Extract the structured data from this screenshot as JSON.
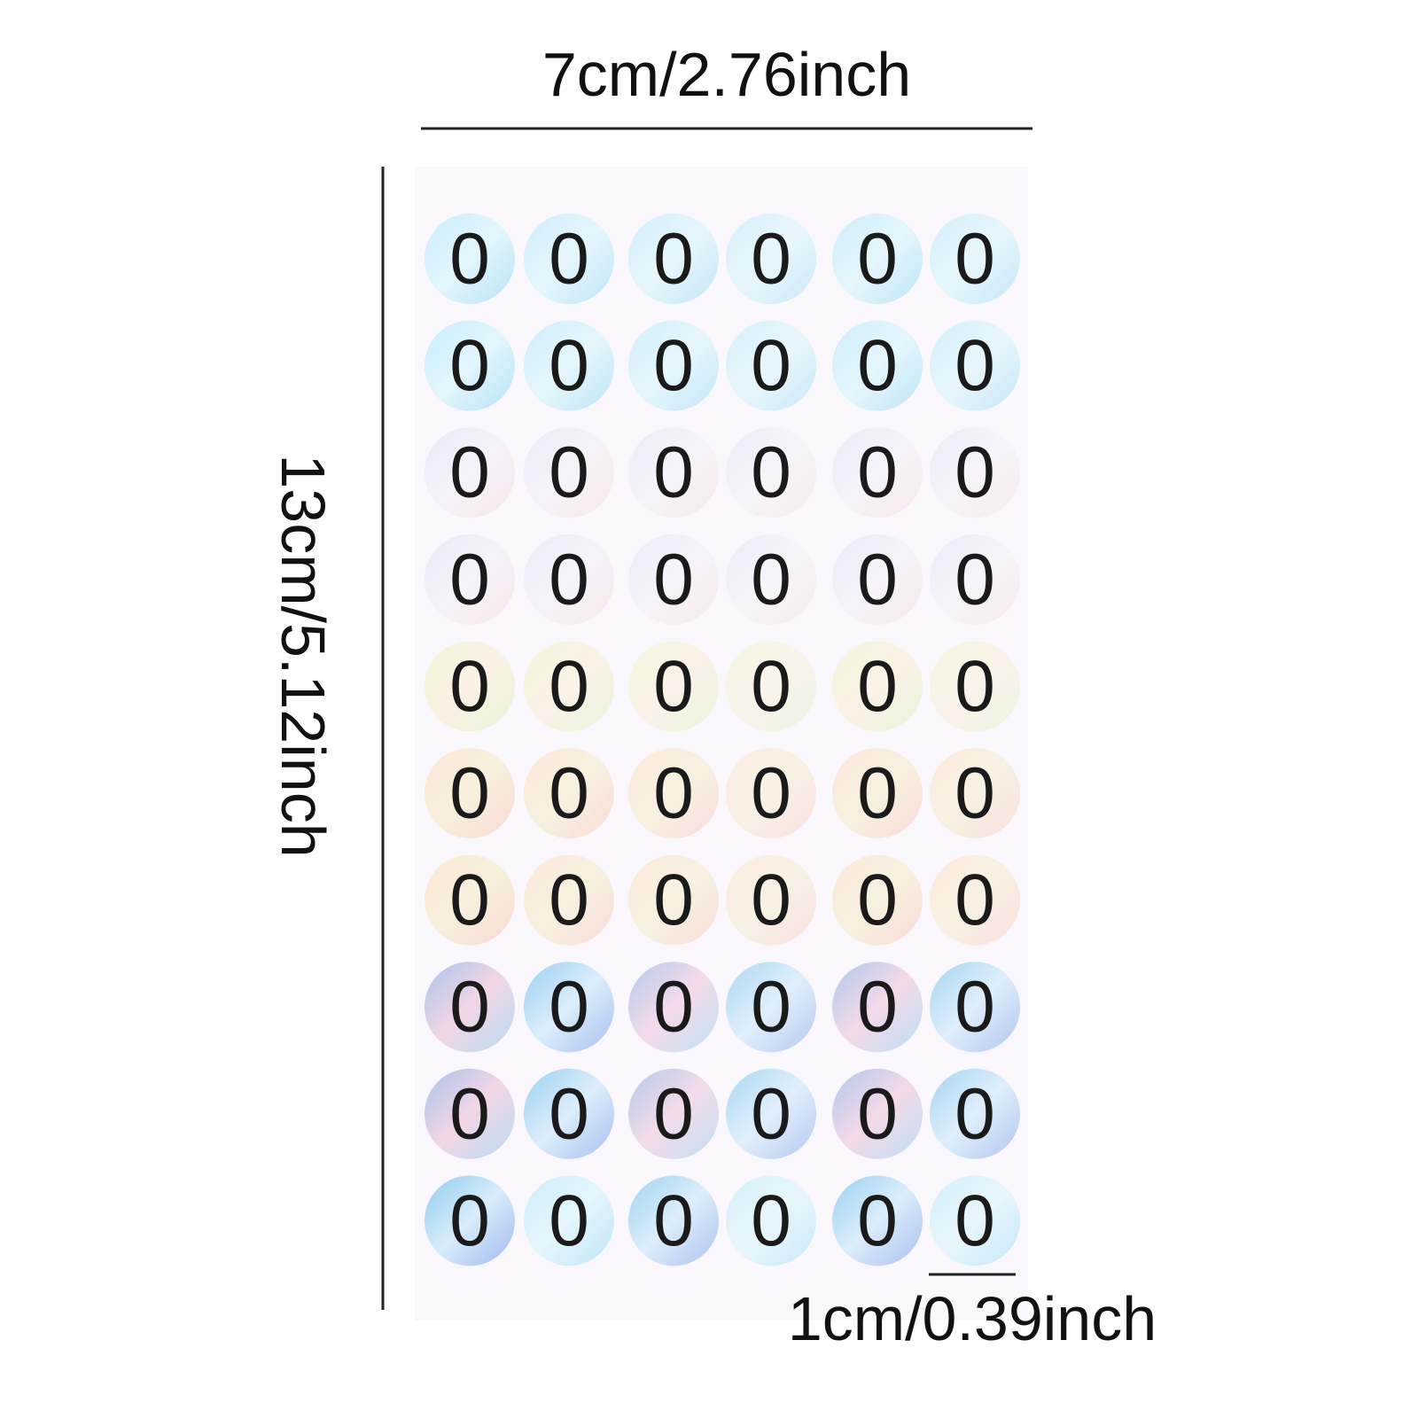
{
  "dimensions": {
    "width": "7cm/2.76inch",
    "height": "13cm/5.12inch",
    "sticker": "1cm/0.39inch"
  },
  "sheet": {
    "rows": [
      [
        "0",
        "0",
        "0",
        "0",
        "0",
        "0"
      ],
      [
        "0",
        "0",
        "0",
        "0",
        "0",
        "0"
      ],
      [
        "0",
        "0",
        "0",
        "0",
        "0",
        "0"
      ],
      [
        "0",
        "0",
        "0",
        "0",
        "0",
        "0"
      ],
      [
        "0",
        "0",
        "0",
        "0",
        "0",
        "0"
      ],
      [
        "0",
        "0",
        "0",
        "0",
        "0",
        "0"
      ],
      [
        "0",
        "0",
        "0",
        "0",
        "0",
        "0"
      ],
      [
        "0",
        "0",
        "0",
        "0",
        "0",
        "0"
      ],
      [
        "0",
        "0",
        "0",
        "0",
        "0",
        "0"
      ],
      [
        "0",
        "0",
        "0",
        "0",
        "0",
        "0"
      ]
    ]
  }
}
